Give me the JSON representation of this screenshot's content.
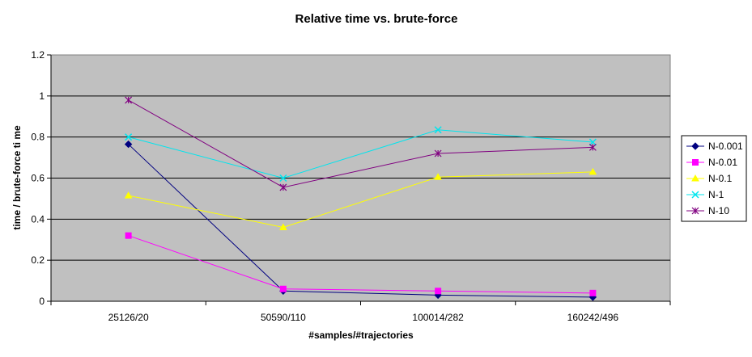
{
  "chart_data": {
    "type": "line",
    "title": "Relative time vs. brute-force",
    "xlabel": "#samples/#trajectories",
    "ylabel": "time / brute-force ti me",
    "categories": [
      "25126/20",
      "50590/110",
      "100014/282",
      "160242/496"
    ],
    "ylim": [
      0,
      1.2
    ],
    "yticks": [
      "0",
      "0.2",
      "0.4",
      "0.6",
      "0.8",
      "1",
      "1.2"
    ],
    "grid": true,
    "legend_position": "right",
    "plot_background": "#c0c0c0",
    "series": [
      {
        "name": "N-0.001",
        "values": [
          0.765,
          0.05,
          0.03,
          0.02
        ],
        "color": "#000080",
        "marker": "diamond"
      },
      {
        "name": "N-0.01",
        "values": [
          0.32,
          0.06,
          0.05,
          0.04
        ],
        "color": "#ff00ff",
        "marker": "square"
      },
      {
        "name": "N-0.1",
        "values": [
          0.515,
          0.36,
          0.605,
          0.63
        ],
        "color": "#ffff00",
        "marker": "triangle"
      },
      {
        "name": "N-1",
        "values": [
          0.8,
          0.6,
          0.835,
          0.775
        ],
        "color": "#00e5ee",
        "marker": "x"
      },
      {
        "name": "N-10",
        "values": [
          0.98,
          0.555,
          0.72,
          0.75
        ],
        "color": "#800080",
        "marker": "star"
      }
    ]
  }
}
